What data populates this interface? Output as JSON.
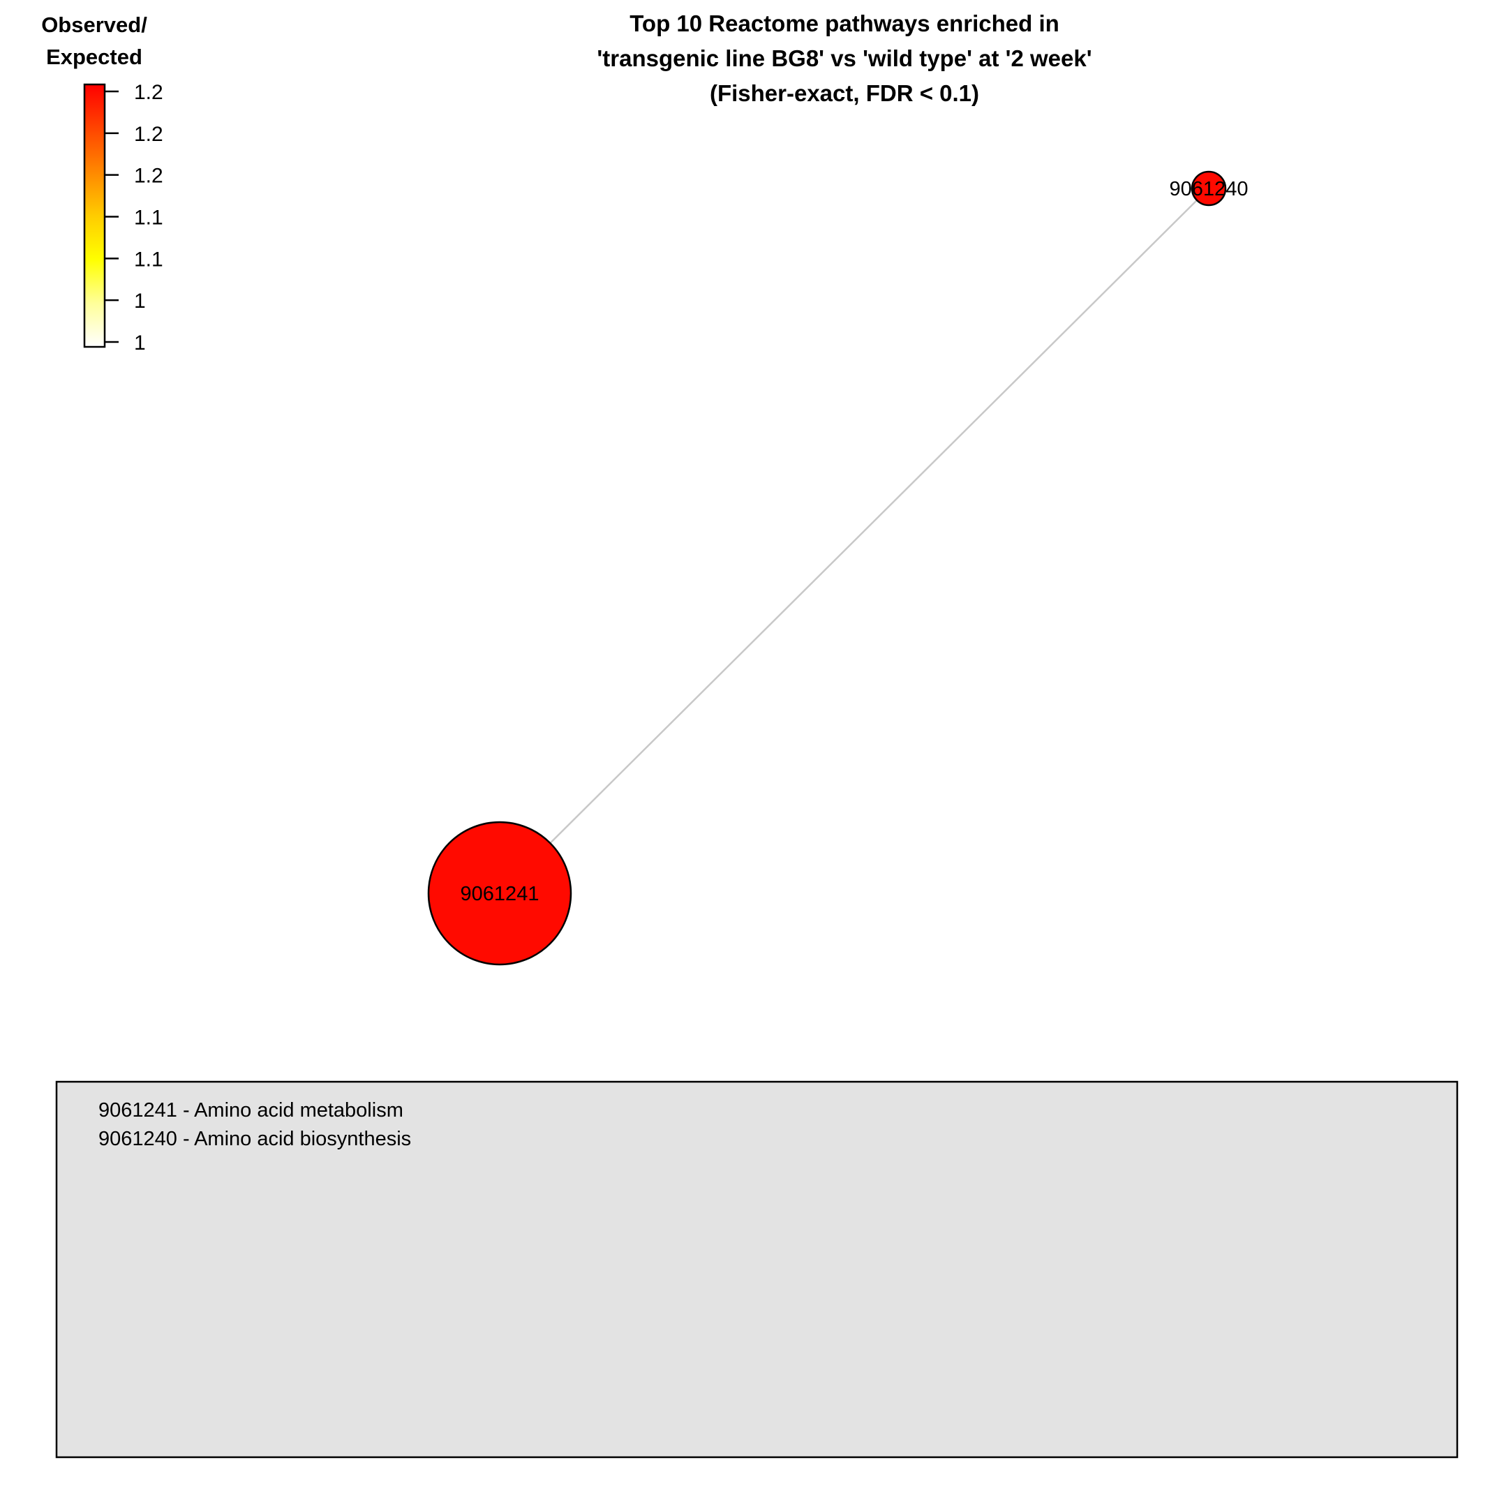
{
  "title": {
    "line1": "Top 10 Reactome pathways enriched in",
    "line2": "'transgenic line BG8' vs 'wild type' at '2 week'",
    "line3": "(Fisher-exact, FDR < 0.1)"
  },
  "colorbar": {
    "title_line1": "Observed/",
    "title_line2": "Expected",
    "ticks": [
      "1.2",
      "1.2",
      "1.2",
      "1.1",
      "1.1",
      "1",
      "1"
    ],
    "gradient_colors": [
      "#ffffff",
      "#ffff99",
      "#ffff00",
      "#ffcc00",
      "#ff8800",
      "#ff4400",
      "#ff0000"
    ]
  },
  "network": {
    "nodes": [
      {
        "id": "9061241",
        "label": "9061241",
        "fill": "#ff0a00",
        "relative_size": 1.0
      },
      {
        "id": "9061240",
        "label": "9061240",
        "fill": "#ff0a00",
        "relative_size": 0.24
      }
    ],
    "edges": [
      {
        "source": "9061241",
        "target": "9061240",
        "color": "#c8c8c8"
      }
    ]
  },
  "key_box": {
    "lines": [
      "9061241 - Amino acid metabolism",
      "9061240 - Amino acid biosynthesis"
    ],
    "background": "#e3e3e3"
  }
}
